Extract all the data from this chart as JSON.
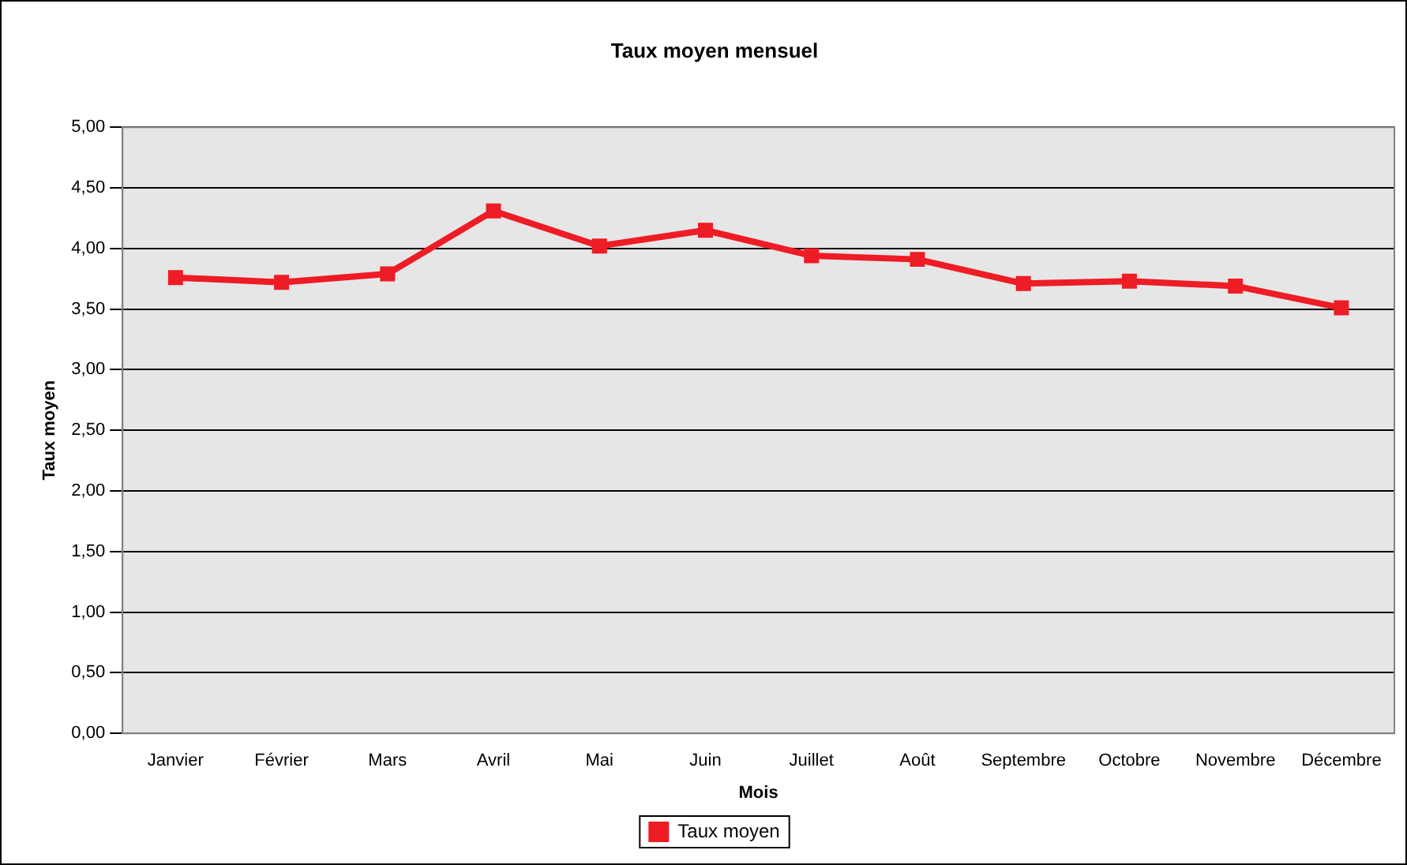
{
  "chart_data": {
    "type": "line",
    "title": "Taux moyen mensuel",
    "xlabel": "Mois",
    "ylabel": "Taux moyen",
    "categories": [
      "Janvier",
      "Février",
      "Mars",
      "Avril",
      "Mai",
      "Juin",
      "Juillet",
      "Août",
      "Septembre",
      "Octobre",
      "Novembre",
      "Décembre"
    ],
    "series": [
      {
        "name": "Taux moyen",
        "color": "#ee1c25",
        "values": [
          3.76,
          3.72,
          3.79,
          4.31,
          4.02,
          4.15,
          3.94,
          3.91,
          3.71,
          3.73,
          3.69,
          3.51
        ]
      }
    ],
    "ylim": [
      0,
      5
    ],
    "yticks": [
      {
        "value": 0,
        "label": "0,00"
      },
      {
        "value": 0.5,
        "label": "0,50"
      },
      {
        "value": 1,
        "label": "1,00"
      },
      {
        "value": 1.5,
        "label": "1,50"
      },
      {
        "value": 2,
        "label": "2,00"
      },
      {
        "value": 2.5,
        "label": "2,50"
      },
      {
        "value": 3,
        "label": "3,00"
      },
      {
        "value": 3.5,
        "label": "3,50"
      },
      {
        "value": 4,
        "label": "4,00"
      },
      {
        "value": 4.5,
        "label": "4,50"
      },
      {
        "value": 5,
        "label": "5,00"
      }
    ],
    "grid": "y",
    "legend": "bottom",
    "marker": "square",
    "line_style": "solid"
  }
}
